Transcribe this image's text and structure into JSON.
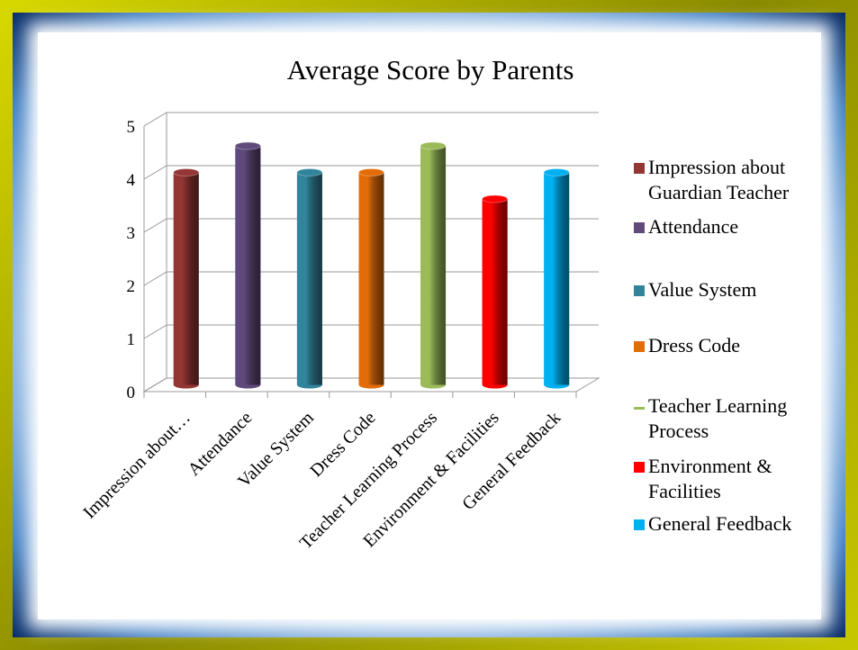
{
  "chart_data": {
    "type": "bar",
    "title": "Average Score by Parents",
    "categories": [
      "Impression about…",
      "Attendance",
      "Value System",
      "Dress Code",
      "Teacher Learning Process",
      "Environment & Facilities",
      "General Feedback"
    ],
    "values": [
      4,
      4.5,
      4,
      4,
      4.5,
      3.5,
      4
    ],
    "colors": [
      "#943634",
      "#604a7b",
      "#31849b",
      "#e36c09",
      "#9bbb59",
      "#ff0000",
      "#00b0f0"
    ],
    "legend_labels": [
      "Impression about Guardian Teacher",
      "Attendance",
      "Value System",
      "Dress Code",
      "Teacher Learning Process",
      "Environment & Facilities",
      "General Feedback"
    ],
    "ylim": [
      0,
      5
    ],
    "yticks": [
      0,
      1,
      2,
      3,
      4,
      5
    ],
    "grid": true,
    "legend": "right"
  }
}
